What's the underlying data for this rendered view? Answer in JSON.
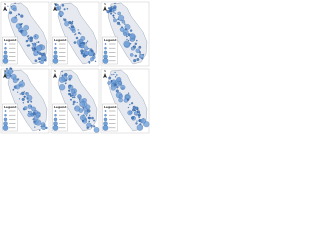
{
  "panels": [
    {
      "legend_title": "Legend"
    },
    {
      "legend_title": "Legend"
    },
    {
      "legend_title": "Legend"
    },
    {
      "legend_title": "Legend"
    },
    {
      "legend_title": "Legend"
    },
    {
      "legend_title": "Legend"
    }
  ],
  "north": "N"
}
